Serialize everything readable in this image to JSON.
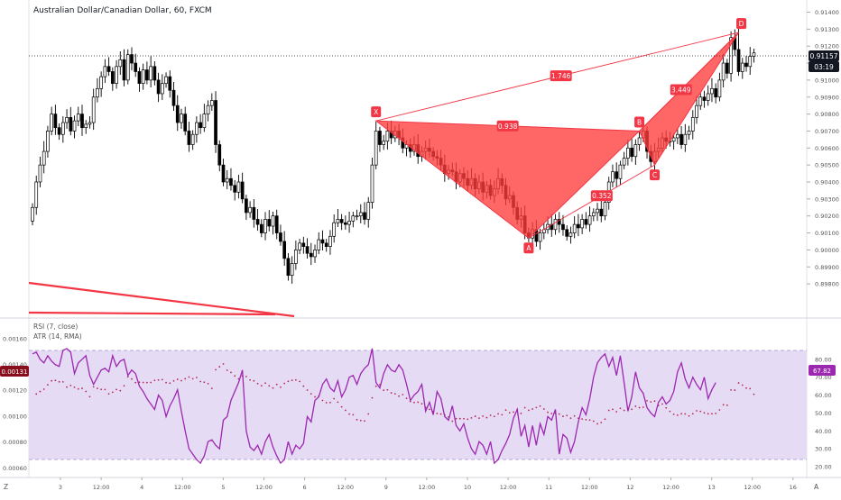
{
  "chart_title": "Australian Dollar/Canadian Dollar, 60, FXCM",
  "colors": {
    "background": "#ffffff",
    "candle": "#000000",
    "pattern_fill": "#ff3b3b",
    "pattern_line": "#f23645",
    "label_bg": "#f23645",
    "label_text": "#ffffff",
    "rsi_line": "#9c27b0",
    "rsi_band": "#e6dbf5",
    "atr_dots": "#b52b55",
    "price_tag_bg": "#131722",
    "rsi_tag_bg": "#9c27b0",
    "atr_tag_bg": "#880e1e",
    "axis_text": "#555555",
    "grid": "#e1e3e6"
  },
  "price_axis": {
    "ticks": [
      "0.91400",
      "0.91300",
      "0.91200",
      "0.91100",
      "0.91000",
      "0.90900",
      "0.90800",
      "0.90700",
      "0.90600",
      "0.90500",
      "0.90400",
      "0.90300",
      "0.90200",
      "0.90100",
      "0.90000",
      "0.89900",
      "0.89800"
    ],
    "current_price": "0.91157",
    "countdown": "03:19"
  },
  "oscillator": {
    "rsi_title": "RSI (7, close)",
    "atr_title": "ATR (14, RMA)",
    "left_ticks": [
      "0.00160",
      "0.00140",
      "0.00120",
      "0.00100",
      "0.00080",
      "0.00060"
    ],
    "right_ticks": [
      "80.00",
      "70.00",
      "60.00",
      "50.00",
      "40.00",
      "30.00",
      "20.00"
    ],
    "atr_value": "0.00131",
    "rsi_value": "67.82"
  },
  "time_axis": {
    "ticks": [
      "3",
      "12:00",
      "4",
      "12:00",
      "5",
      "12:00",
      "6",
      "12:00",
      "9",
      "12:00",
      "10",
      "12:00",
      "11",
      "12:00",
      "12",
      "12:00",
      "13",
      "12:00",
      "16"
    ]
  },
  "corner_labels": {
    "bottom_left": "Z",
    "bottom_right": "A"
  },
  "pattern": {
    "points": [
      "X",
      "A",
      "B",
      "C",
      "D"
    ],
    "ratios": {
      "xd": "1.746",
      "xb": "0.938",
      "ac": "0.352",
      "bd": "3.449"
    }
  },
  "chart_data": {
    "type": "candlestick",
    "symbol": "Australian Dollar/Canadian Dollar",
    "timeframe": "60",
    "source": "FXCM",
    "price_range": [
      0.8975,
      0.9145
    ],
    "current_price": 0.91157,
    "pattern_points": [
      {
        "label": "X",
        "bar": 90,
        "price": 0.9076
      },
      {
        "label": "A",
        "bar": 130,
        "price": 0.9007
      },
      {
        "label": "B",
        "bar": 159,
        "price": 0.907
      },
      {
        "label": "C",
        "bar": 163,
        "price": 0.905
      },
      {
        "label": "D",
        "bar": 185,
        "price": 0.9128
      }
    ],
    "close": [
      0.9025,
      0.904,
      0.905,
      0.9058,
      0.907,
      0.908,
      0.9072,
      0.9068,
      0.9075,
      0.9078,
      0.907,
      0.9076,
      0.908,
      0.9072,
      0.9074,
      0.9075,
      0.909,
      0.9095,
      0.9102,
      0.9108,
      0.9105,
      0.9098,
      0.9108,
      0.9112,
      0.91,
      0.9115,
      0.911,
      0.9105,
      0.9098,
      0.9106,
      0.91,
      0.9108,
      0.91,
      0.9092,
      0.9098,
      0.9102,
      0.9094,
      0.9085,
      0.9075,
      0.908,
      0.907,
      0.9062,
      0.9068,
      0.9075,
      0.9072,
      0.908,
      0.9085,
      0.9088,
      0.9062,
      0.905,
      0.904,
      0.9042,
      0.9038,
      0.9034,
      0.904,
      0.903,
      0.9022,
      0.9025,
      0.9018,
      0.9015,
      0.901,
      0.9018,
      0.9014,
      0.902,
      0.901,
      0.9005,
      0.8995,
      0.8985,
      0.8992,
      0.9,
      0.9004,
      0.9002,
      0.8998,
      0.8996,
      0.9,
      0.9006,
      0.9004,
      0.9002,
      0.9008,
      0.9016,
      0.9018,
      0.9016,
      0.9015,
      0.9017,
      0.902,
      0.902,
      0.9022,
      0.9018,
      0.9028,
      0.905,
      0.907,
      0.9062,
      0.9064,
      0.907,
      0.9066,
      0.907,
      0.9066,
      0.906,
      0.9062,
      0.9058,
      0.9062,
      0.9055,
      0.9058,
      0.906,
      0.9058,
      0.9055,
      0.9054,
      0.905,
      0.9045,
      0.9047,
      0.9046,
      0.904,
      0.9045,
      0.9042,
      0.9038,
      0.9042,
      0.9036,
      0.904,
      0.9034,
      0.9038,
      0.9032,
      0.9036,
      0.9042,
      0.9038,
      0.903,
      0.9032,
      0.9025,
      0.9018,
      0.902,
      0.901,
      0.9007,
      0.9012,
      0.9005,
      0.901,
      0.9012,
      0.9015,
      0.9012,
      0.9018,
      0.9015,
      0.9012,
      0.9008,
      0.901,
      0.9015,
      0.9013,
      0.9018,
      0.9015,
      0.902,
      0.9022,
      0.9024,
      0.902,
      0.9028,
      0.904,
      0.9046,
      0.9042,
      0.905,
      0.9054,
      0.906,
      0.9055,
      0.9062,
      0.9066,
      0.907,
      0.9058,
      0.9052,
      0.9058,
      0.906,
      0.9066,
      0.9064,
      0.9064,
      0.9066,
      0.9068,
      0.9062,
      0.9068,
      0.907,
      0.9078,
      0.9085,
      0.909,
      0.9088,
      0.9092,
      0.9095,
      0.909,
      0.91,
      0.911,
      0.9104,
      0.9125,
      0.9118,
      0.9105,
      0.911,
      0.9108,
      0.9114,
      0.9116
    ],
    "rsi": [
      83,
      84,
      80,
      78,
      82,
      79,
      77,
      76,
      85,
      86,
      84,
      72,
      78,
      80,
      82,
      71,
      66,
      70,
      74,
      75,
      73,
      82,
      76,
      79,
      80,
      71,
      74,
      72,
      65,
      62,
      58,
      55,
      52,
      60,
      57,
      48,
      54,
      58,
      63,
      51,
      40,
      30,
      27,
      24,
      22,
      26,
      34,
      35,
      32,
      30,
      46,
      48,
      57,
      62,
      67,
      74,
      40,
      31,
      29,
      32,
      27,
      34,
      38,
      31,
      26,
      22,
      24,
      34,
      27,
      32,
      30,
      33,
      48,
      45,
      57,
      59,
      66,
      69,
      64,
      62,
      68,
      59,
      63,
      70,
      71,
      66,
      72,
      75,
      77,
      86,
      67,
      64,
      72,
      77,
      74,
      73,
      77,
      74,
      66,
      57,
      60,
      62,
      66,
      51,
      56,
      49,
      62,
      58,
      48,
      46,
      54,
      43,
      40,
      44,
      36,
      30,
      27,
      34,
      32,
      27,
      34,
      22,
      24,
      29,
      33,
      38,
      47,
      52,
      37,
      43,
      31,
      43,
      32,
      44,
      38,
      48,
      46,
      52,
      27,
      38,
      36,
      28,
      34,
      45,
      53,
      49,
      58,
      70,
      78,
      81,
      83,
      76,
      81,
      71,
      82,
      67,
      51,
      59,
      73,
      64,
      61,
      53,
      50,
      48,
      56,
      59,
      55,
      57,
      62,
      73,
      78,
      69,
      64,
      70,
      66,
      63,
      70,
      58,
      63,
      67
    ],
    "rsi_levels": [
      70,
      30
    ],
    "rsi_range": [
      17,
      95
    ],
    "atr_range": [
      0.00054,
      0.00171
    ],
    "atr_current": 0.00131
  }
}
